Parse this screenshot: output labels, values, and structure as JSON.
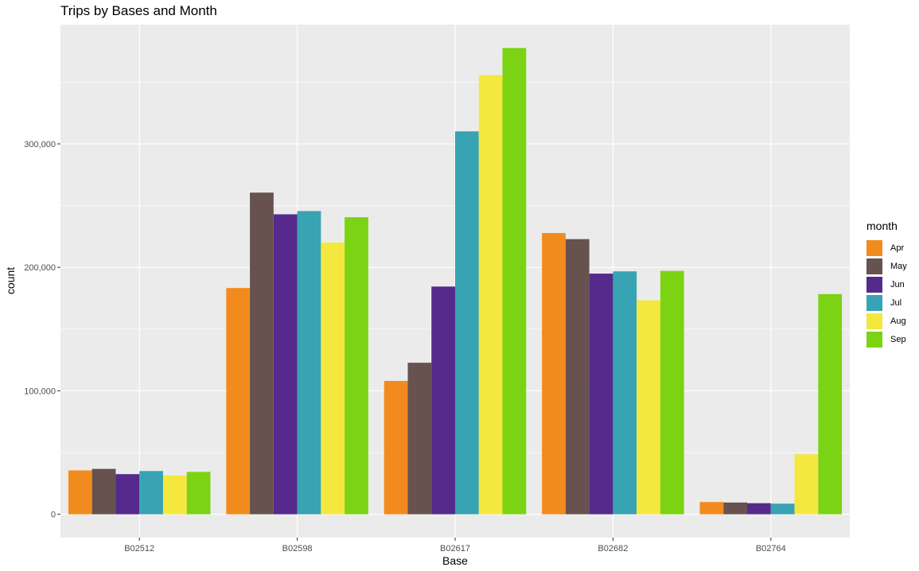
{
  "chart_data": {
    "type": "bar",
    "title": "Trips by Bases and Month",
    "xlabel": "Base",
    "ylabel": "count",
    "categories": [
      "B02512",
      "B02598",
      "B02617",
      "B02682",
      "B02764"
    ],
    "series": [
      {
        "name": "Apr",
        "color": "#F28B1D",
        "values": [
          35536,
          183263,
          108001,
          227808,
          9908
        ]
      },
      {
        "name": "May",
        "color": "#67524F",
        "values": [
          36765,
          260549,
          122734,
          222883,
          9504
        ]
      },
      {
        "name": "Jun",
        "color": "#552A8C",
        "values": [
          32509,
          242975,
          184460,
          194926,
          8974
        ]
      },
      {
        "name": "Jul",
        "color": "#38A3B2",
        "values": [
          35021,
          245597,
          310160,
          196754,
          8589
        ]
      },
      {
        "name": "Aug",
        "color": "#F4E83F",
        "values": [
          31472,
          220129,
          355803,
          173280,
          48591
        ]
      },
      {
        "name": "Sep",
        "color": "#7BD314",
        "values": [
          34370,
          240600,
          377695,
          197138,
          178333
        ]
      }
    ],
    "yticks": [
      0,
      100000,
      200000,
      300000
    ],
    "ytick_labels": [
      "0",
      "100,000",
      "200,000",
      "300,000"
    ],
    "ylim": [
      -18900,
      396600
    ],
    "legend": {
      "title": "month",
      "position": "right"
    },
    "grid": true
  }
}
